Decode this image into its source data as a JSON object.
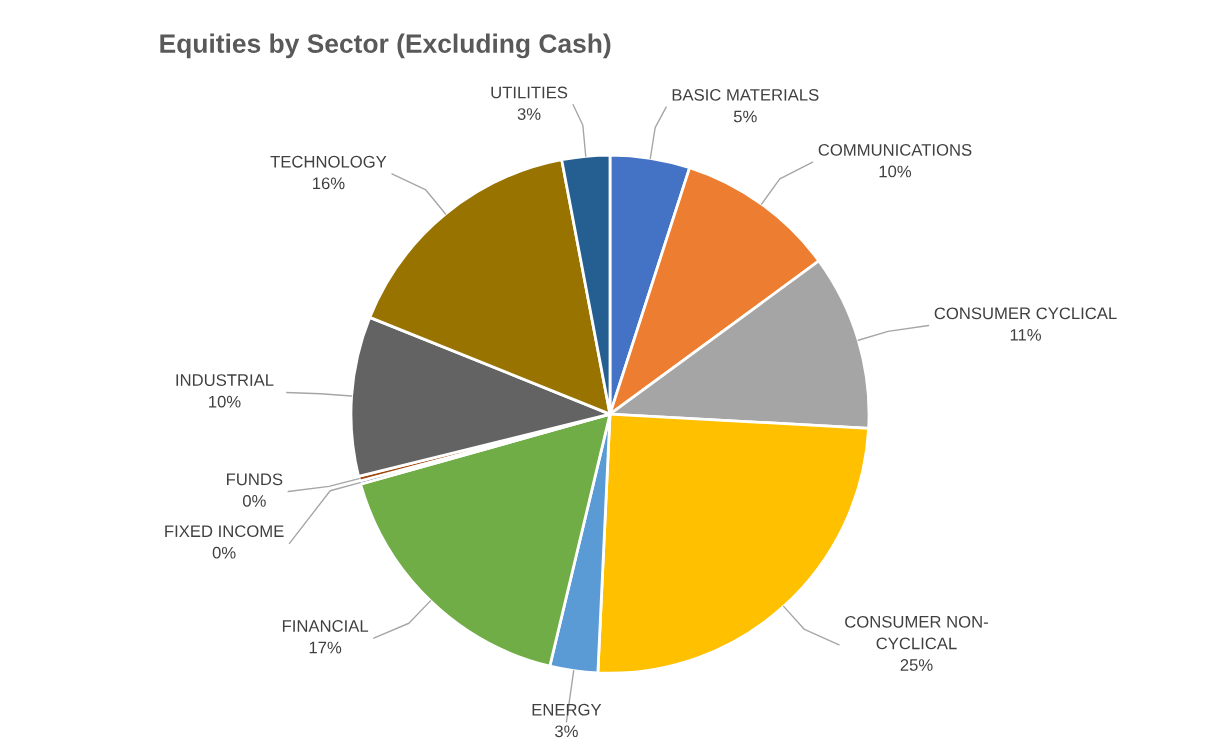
{
  "chart_data": {
    "type": "pie",
    "title": "Equities by Sector (Excluding Cash)",
    "categories": [
      "BASIC MATERIALS",
      "COMMUNICATIONS",
      "CONSUMER CYCLICAL",
      "CONSUMER NON-\nCYCLICAL",
      "ENERGY",
      "FINANCIAL",
      "FIXED INCOME",
      "FUNDS",
      "INDUSTRIAL",
      "TECHNOLOGY",
      "UTILITIES"
    ],
    "values": [
      5,
      10,
      11,
      25,
      3,
      17,
      0.2,
      0.3,
      10,
      16,
      3
    ],
    "value_labels": [
      "5%",
      "10%",
      "11%",
      "25%",
      "3%",
      "17%",
      "0%",
      "0%",
      "10%",
      "16%",
      "3%"
    ],
    "colors": [
      "#4472c4",
      "#ed7d31",
      "#a5a5a5",
      "#ffc000",
      "#5b9bd5",
      "#70ad47",
      "#264478",
      "#9e480e",
      "#636363",
      "#997300",
      "#255e91"
    ],
    "legend": false
  }
}
